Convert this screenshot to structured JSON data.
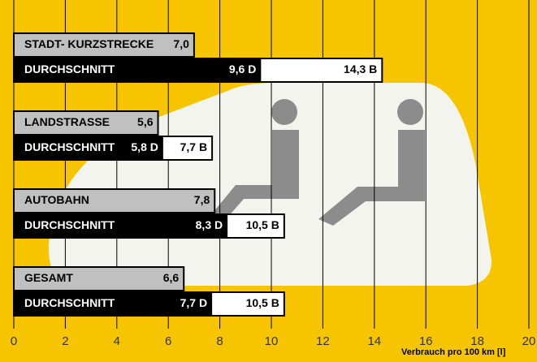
{
  "chart_data": {
    "type": "bar",
    "orientation": "horizontal",
    "categories": [
      "STADT- KURZSTRECKE",
      "LANDSTRASSE",
      "AUTOBAHN",
      "GESAMT"
    ],
    "series": [
      {
        "color": "#c0c0c0",
        "values": [
          7.0,
          5.6,
          7.8,
          6.6
        ],
        "value_labels": [
          "7,0",
          "5,6",
          "7,8",
          "6,6"
        ]
      },
      {
        "name": "DURCHSCHNITT",
        "color": "#000000",
        "values": [
          9.6,
          5.8,
          8.3,
          7.7
        ],
        "value_labels": [
          "9,6 D",
          "5,8 D",
          "8,3 D",
          "7,7 D"
        ]
      },
      {
        "color": "#ffffff",
        "values": [
          14.3,
          7.7,
          10.5,
          10.5
        ],
        "value_labels": [
          "14,3 B",
          "7,7 B",
          "10,5 B",
          "10,5 B"
        ]
      }
    ],
    "xlabel": "Verbrauch pro 100 km [l]",
    "xlim": [
      0,
      20
    ],
    "xticks": [
      0,
      2,
      4,
      6,
      8,
      10,
      12,
      14,
      16,
      18,
      20
    ],
    "grid": true
  }
}
